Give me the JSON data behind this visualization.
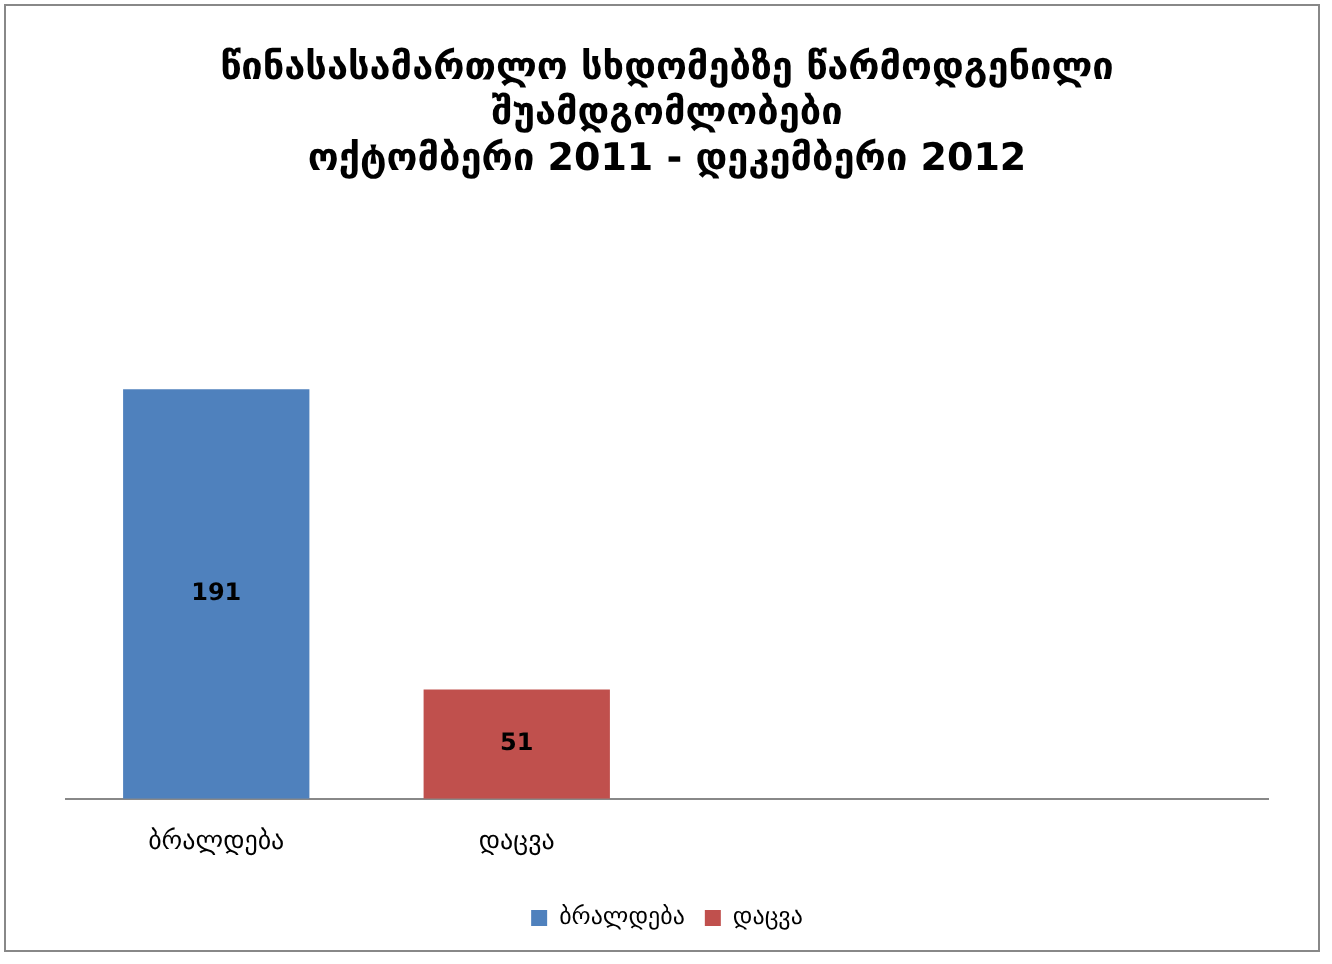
{
  "chart_data": {
    "type": "bar",
    "title": "წინასასამართლო სხდომებზე წარმოდგენილი\nშუამდგომლობები\nოქტომბერი 2011 - დეკემბერი 2012",
    "categories": [
      "ბრალდება",
      "დაცვა",
      null,
      null
    ],
    "series": [
      {
        "name": "ბრალდება",
        "color": "#4f81bd",
        "values": [
          191,
          null,
          null,
          null
        ]
      },
      {
        "name": "დაცვა",
        "color": "#c0504d",
        "values": [
          null,
          51,
          null,
          null
        ]
      }
    ],
    "data_labels": true,
    "legend": "bottom",
    "grid": false
  }
}
